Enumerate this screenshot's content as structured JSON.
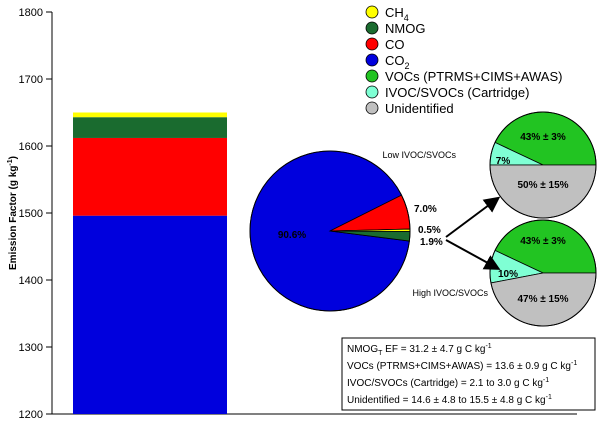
{
  "colors": {
    "CH4": "#ffff00",
    "NMOG": "#1a6b2f",
    "CO": "#ff0000",
    "CO2": "#0000dd",
    "VOCs": "#22c422",
    "IVOC": "#7fffd4",
    "Unidentified": "#c0c0c0"
  },
  "chart_data": [
    {
      "type": "bar",
      "stacked": true,
      "ylabel_main": "Emission Factor (g kg",
      "ylabel_sup": "-1",
      "ylabel_end": ")",
      "ylim": [
        1200,
        1800
      ],
      "yticks": [
        1200,
        1300,
        1400,
        1500,
        1600,
        1700,
        1800
      ],
      "segments": [
        {
          "name": "CO2",
          "from": 1200,
          "to": 1496
        },
        {
          "name": "CO",
          "from": 1496,
          "to": 1612
        },
        {
          "name": "NMOG",
          "from": 1612,
          "to": 1643
        },
        {
          "name": "CH4",
          "from": 1643,
          "to": 1650
        }
      ]
    },
    {
      "type": "pie",
      "slices": [
        {
          "name": "CO2",
          "value": 90.6,
          "label": "90.6%"
        },
        {
          "name": "CO",
          "value": 7.0,
          "label": "7.0%"
        },
        {
          "name": "CH4",
          "value": 0.5,
          "label": "0.5%"
        },
        {
          "name": "NMOG",
          "value": 1.9,
          "label": "1.9%"
        }
      ]
    },
    {
      "type": "pie",
      "title": "Low IVOC/SVOCs",
      "slices": [
        {
          "name": "VOCs",
          "value": 43,
          "label": "43% ± 3%"
        },
        {
          "name": "IVOC",
          "value": 7,
          "label": "7%"
        },
        {
          "name": "Unidentified",
          "value": 50,
          "label": "50% ± 15%"
        }
      ]
    },
    {
      "type": "pie",
      "title": "High IVOC/SVOCs",
      "slices": [
        {
          "name": "VOCs",
          "value": 43,
          "label": "43% ± 3%"
        },
        {
          "name": "IVOC",
          "value": 10,
          "label": "10%"
        },
        {
          "name": "Unidentified",
          "value": 47,
          "label": "47% ± 15%"
        }
      ]
    }
  ],
  "legend": {
    "items": [
      {
        "key": "CH4",
        "text": "CH",
        "sub": "4"
      },
      {
        "key": "NMOG",
        "text": "NMOG",
        "sub": ""
      },
      {
        "key": "CO",
        "text": "CO",
        "sub": ""
      },
      {
        "key": "CO2",
        "text": "CO",
        "sub": "2"
      },
      {
        "key": "VOCs",
        "text": "VOCs (PTRMS+CIMS+AWAS)",
        "sub": ""
      },
      {
        "key": "IVOC",
        "text": "IVOC/SVOCs (Cartridge)",
        "sub": ""
      },
      {
        "key": "Unidentified",
        "text": "Unidentified",
        "sub": ""
      }
    ]
  },
  "infobox": {
    "line1_a": "NMOG",
    "line1_sub": "T",
    "line1_b": " EF = 31.2 ± 4.7 g C kg",
    "line1_sup": "-1",
    "line2": "VOCs (PTRMS+CIMS+AWAS) = 13.6 ± 0.9 g C kg",
    "line2_sup": "-1",
    "line3": "IVOC/SVOCs (Cartridge) = 2.1 to 3.0 g C kg",
    "line3_sup": "-1",
    "line4": "Unidentified = 14.6 ± 4.8 to 15.5 ± 4.8 g C kg",
    "line4_sup": "-1"
  }
}
